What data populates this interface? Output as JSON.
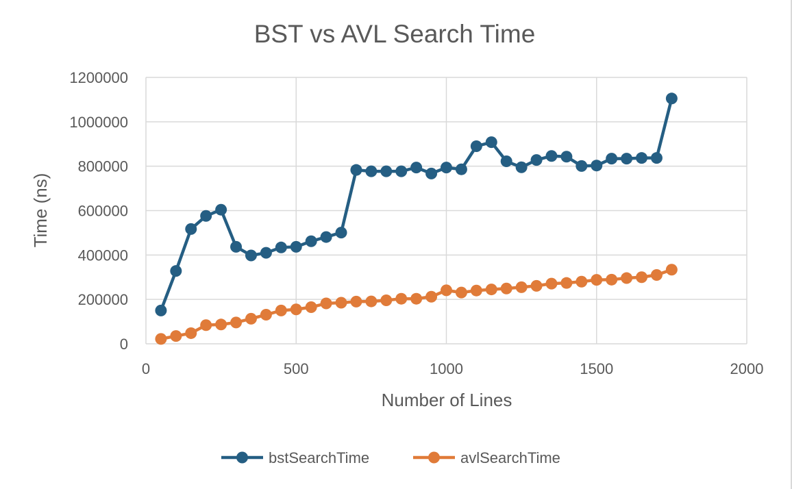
{
  "chart_data": {
    "type": "line",
    "title": "BST vs AVL Search Time",
    "xlabel": "Number of Lines",
    "ylabel": "Time (ns)",
    "xlim": [
      0,
      2000
    ],
    "ylim": [
      0,
      1200000
    ],
    "xticks": [
      "0",
      "500",
      "1000",
      "1500",
      "2000"
    ],
    "yticks": [
      "0",
      "200000",
      "400000",
      "600000",
      "800000",
      "1000000",
      "1200000"
    ],
    "grid": true,
    "legend_position": "bottom",
    "x": [
      50,
      100,
      150,
      200,
      250,
      300,
      350,
      400,
      450,
      500,
      550,
      600,
      650,
      700,
      750,
      800,
      850,
      900,
      950,
      1000,
      1050,
      1100,
      1150,
      1200,
      1250,
      1300,
      1350,
      1400,
      1450,
      1500,
      1550,
      1600,
      1650,
      1700,
      1750
    ],
    "series": [
      {
        "name": "bstSearchTime",
        "color": "#255e83",
        "values": [
          150000,
          328000,
          517000,
          576000,
          604000,
          437000,
          398000,
          410000,
          434000,
          437000,
          462000,
          481000,
          501000,
          783000,
          777000,
          777000,
          777000,
          794000,
          767000,
          794000,
          786000,
          890000,
          908000,
          822000,
          795000,
          828000,
          846000,
          843000,
          801000,
          803000,
          834000,
          834000,
          837000,
          837000,
          1105000
        ]
      },
      {
        "name": "avlSearchTime",
        "color": "#e07b39",
        "values": [
          22000,
          35000,
          48000,
          84000,
          87000,
          96000,
          113000,
          131000,
          150000,
          155000,
          165000,
          182000,
          185000,
          190000,
          191000,
          196000,
          203000,
          203000,
          212000,
          241000,
          231000,
          240000,
          245000,
          249000,
          255000,
          261000,
          271000,
          274000,
          280000,
          288000,
          289000,
          296000,
          300000,
          310000,
          334000
        ]
      }
    ]
  }
}
